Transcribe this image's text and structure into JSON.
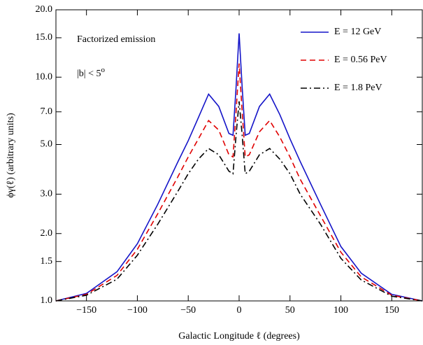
{
  "chart_data": {
    "type": "line",
    "xlabel": "Galactic Longitude ℓ   (degrees)",
    "ylabel": "ϕγ(ℓ)  (arbitrary units)",
    "annotations": [
      "Factorized emission",
      {
        "text": "|b| < 5",
        "sup": "o"
      }
    ],
    "x": [
      -180,
      -150,
      -120,
      -100,
      -80,
      -60,
      -50,
      -40,
      -30,
      -20,
      -10,
      -6,
      -3,
      0,
      3,
      6,
      10,
      20,
      30,
      40,
      50,
      60,
      80,
      100,
      120,
      150,
      180
    ],
    "series": [
      {
        "name": "E = 12 GeV",
        "color": "#1414c8",
        "dash": "solid",
        "values": [
          1.0,
          1.08,
          1.35,
          1.8,
          2.7,
          4.2,
          5.2,
          6.6,
          8.4,
          7.4,
          5.6,
          5.5,
          9,
          15.7,
          9,
          5.5,
          5.6,
          7.4,
          8.4,
          6.8,
          5.3,
          4.2,
          2.7,
          1.75,
          1.33,
          1.07,
          1.0
        ]
      },
      {
        "name": "E = 0.56 PeV",
        "color": "#e00000",
        "dash": "dashed",
        "values": [
          1.0,
          1.07,
          1.3,
          1.7,
          2.45,
          3.6,
          4.4,
          5.3,
          6.4,
          5.8,
          4.5,
          4.4,
          7,
          11.5,
          7,
          4.4,
          4.5,
          5.7,
          6.4,
          5.4,
          4.4,
          3.5,
          2.4,
          1.65,
          1.28,
          1.06,
          1.0
        ]
      },
      {
        "name": "E = 1.8 PeV",
        "color": "#000000",
        "dash": "dashdot",
        "values": [
          1.0,
          1.06,
          1.25,
          1.6,
          2.2,
          3.1,
          3.7,
          4.3,
          4.8,
          4.5,
          3.8,
          3.7,
          5.5,
          7.8,
          5.5,
          3.7,
          3.8,
          4.5,
          4.8,
          4.3,
          3.7,
          3.0,
          2.2,
          1.55,
          1.24,
          1.05,
          1.0
        ]
      }
    ],
    "xlim": [
      -180,
      180
    ],
    "xticks": [
      {
        "value": -150,
        "label": "−150"
      },
      {
        "value": -100,
        "label": "−100"
      },
      {
        "value": -50,
        "label": "−50"
      },
      0,
      50,
      100,
      150
    ],
    "ylim": [
      1,
      20
    ],
    "yscale": "log",
    "yticks": [
      {
        "value": 1,
        "label": "1.0"
      },
      {
        "value": 1.5,
        "label": "1.5"
      },
      {
        "value": 2,
        "label": "2.0"
      },
      {
        "value": 3,
        "label": "3.0"
      },
      {
        "value": 5,
        "label": "5.0"
      },
      {
        "value": 7,
        "label": "7.0"
      },
      {
        "value": 10,
        "label": "10.0"
      },
      {
        "value": 15,
        "label": "15.0"
      },
      {
        "value": 20,
        "label": "20.0"
      }
    ],
    "legend": "upper right"
  }
}
